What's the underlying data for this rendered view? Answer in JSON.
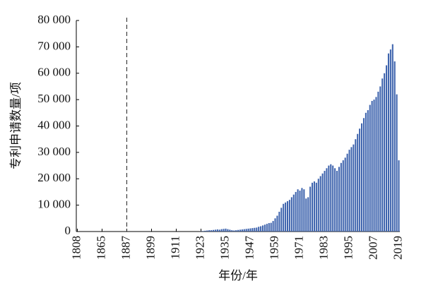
{
  "chart_data": {
    "type": "bar",
    "x_label": "年份/年",
    "y_label": "专利申请数量/项",
    "color": "#3d63ad",
    "reference_line_x": "1887",
    "categories": [
      "1808",
      null,
      null,
      null,
      null,
      null,
      null,
      null,
      null,
      null,
      null,
      null,
      "1865",
      null,
      null,
      null,
      null,
      null,
      null,
      null,
      null,
      null,
      null,
      null,
      "1887",
      null,
      null,
      null,
      null,
      null,
      null,
      null,
      null,
      null,
      null,
      null,
      "1899",
      null,
      null,
      null,
      null,
      null,
      null,
      null,
      null,
      null,
      null,
      null,
      "1911",
      null,
      null,
      null,
      null,
      null,
      null,
      null,
      null,
      null,
      null,
      null,
      "1923",
      null,
      null,
      null,
      null,
      null,
      null,
      null,
      null,
      null,
      null,
      null,
      "1935",
      null,
      null,
      null,
      null,
      null,
      null,
      null,
      null,
      null,
      null,
      null,
      "1947",
      null,
      null,
      null,
      null,
      null,
      null,
      null,
      null,
      null,
      null,
      null,
      "1959",
      null,
      null,
      null,
      null,
      null,
      null,
      null,
      null,
      null,
      null,
      null,
      "1971",
      null,
      null,
      null,
      null,
      null,
      null,
      null,
      null,
      null,
      null,
      null,
      "1983",
      null,
      null,
      null,
      null,
      null,
      null,
      null,
      null,
      null,
      null,
      null,
      "1995",
      null,
      null,
      null,
      null,
      null,
      null,
      null,
      null,
      null,
      null,
      null,
      "2007",
      null,
      null,
      null,
      null,
      null,
      null,
      null,
      null,
      null,
      null,
      null,
      "2019"
    ],
    "values": [
      0,
      0,
      0,
      0,
      0,
      0,
      0,
      0,
      0,
      0,
      0,
      0,
      0,
      0,
      0,
      0,
      0,
      0,
      0,
      0,
      0,
      0,
      0,
      0,
      0,
      0,
      0,
      0,
      0,
      0,
      0,
      0,
      0,
      0,
      0,
      0,
      0,
      0,
      0,
      0,
      0,
      0,
      0,
      0,
      0,
      0,
      0,
      0,
      0,
      0,
      0,
      0,
      0,
      0,
      0,
      0,
      0,
      0,
      0,
      0,
      100,
      200,
      300,
      400,
      500,
      500,
      600,
      700,
      800,
      700,
      900,
      1000,
      1100,
      900,
      700,
      500,
      400,
      500,
      600,
      700,
      800,
      900,
      1000,
      1100,
      1200,
      1300,
      1400,
      1500,
      1800,
      2000,
      2300,
      2600,
      2900,
      3200,
      3300,
      4000,
      5000,
      6000,
      7500,
      9000,
      10500,
      11000,
      11500,
      12000,
      13000,
      14000,
      15000,
      16000,
      15500,
      16500,
      16000,
      12500,
      13000,
      17000,
      18500,
      19000,
      18500,
      20000,
      21000,
      22000,
      23000,
      24000,
      25000,
      25500,
      25000,
      24000,
      23000,
      24500,
      26000,
      27000,
      28000,
      29500,
      31000,
      32000,
      33000,
      35000,
      37000,
      39000,
      41000,
      43000,
      45000,
      46000,
      48000,
      49500,
      50000,
      51000,
      53000,
      55000,
      58000,
      60000,
      63000,
      67500,
      69000,
      71000,
      64500,
      52000,
      27000
    ],
    "ylim": [
      0,
      80000
    ],
    "yticks": [
      0,
      {
        "value": 10000,
        "label": "10 000"
      },
      {
        "value": 20000,
        "label": "20 000"
      },
      {
        "value": 30000,
        "label": "30 000"
      },
      {
        "value": 40000,
        "label": "40 000"
      },
      {
        "value": 50000,
        "label": "50 000"
      },
      {
        "value": 60000,
        "label": "60 000"
      },
      {
        "value": 70000,
        "label": "70 000"
      },
      {
        "value": 80000,
        "label": "80 000"
      }
    ]
  }
}
